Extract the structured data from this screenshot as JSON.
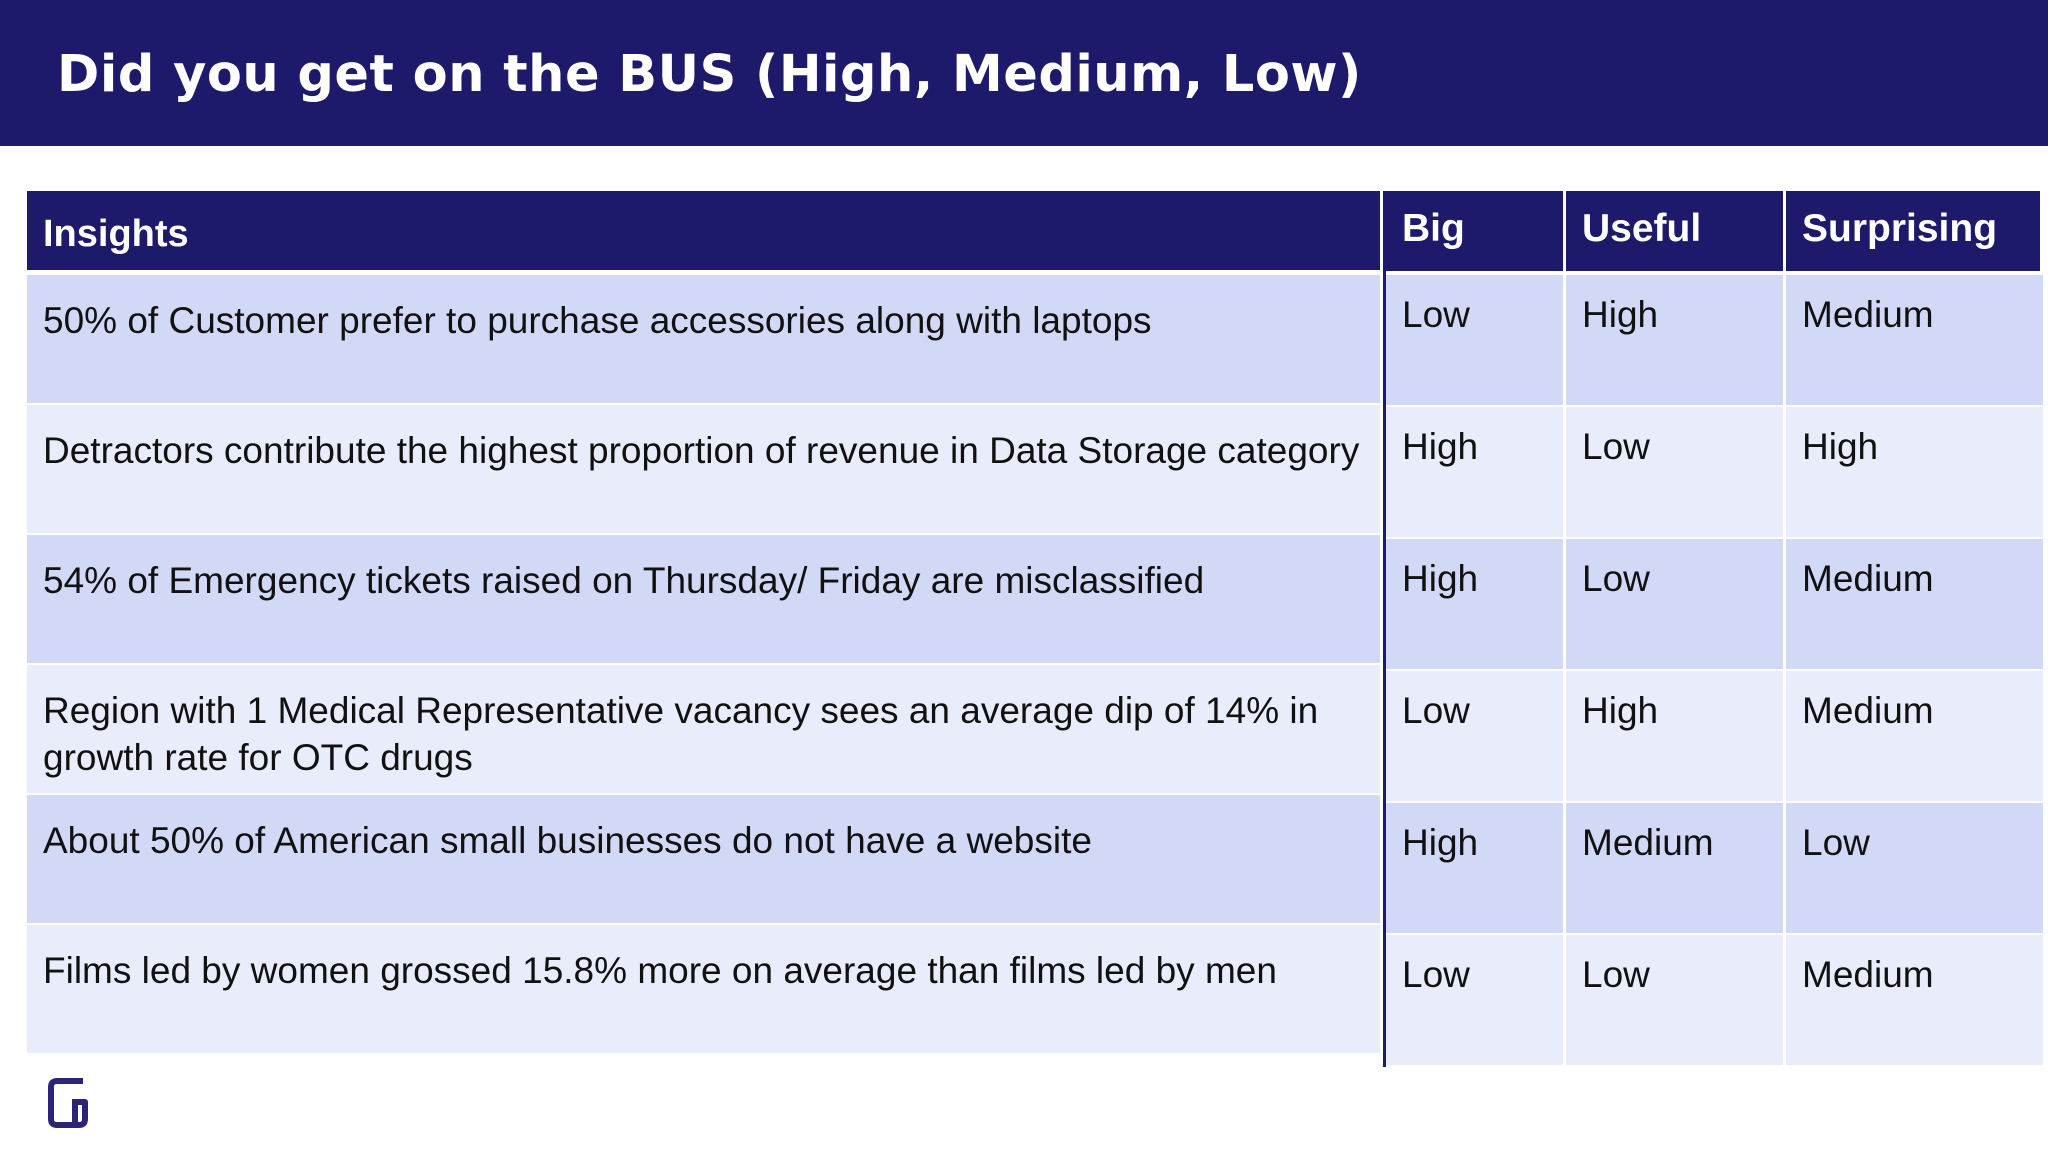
{
  "slide": {
    "title": "Did you get on the BUS (High, Medium, Low)"
  },
  "insights_table": {
    "header": "Insights",
    "rows": [
      "50% of Customer prefer to purchase accessories along with laptops",
      "Detractors contribute the highest proportion of revenue in Data Storage category",
      "54% of Emergency tickets raised on Thursday/ Friday are misclassified",
      "Region with 1 Medical Representative vacancy sees an average dip of 14% in growth rate for OTC drugs",
      "About 50% of American small businesses do not have a website",
      "Films led by women grossed 15.8% more on average than films led by men"
    ]
  },
  "ratings_table": {
    "headers": [
      "Big",
      "Useful",
      "Surprising"
    ],
    "rows": [
      [
        "Low",
        "High",
        "Medium"
      ],
      [
        "High",
        "Low",
        "High"
      ],
      [
        "High",
        "Low",
        "Medium"
      ],
      [
        "Low",
        "High",
        "Medium"
      ],
      [
        "High",
        "Medium",
        "Low"
      ],
      [
        "Low",
        "Low",
        "Medium"
      ]
    ]
  },
  "colors": {
    "header_bg": "#1e1a6b",
    "row_dark": "#d2d9f7",
    "row_light": "#e9ecfb",
    "logo": "#2c2477"
  },
  "icons": {
    "logo": "brand-g-logo-icon"
  }
}
